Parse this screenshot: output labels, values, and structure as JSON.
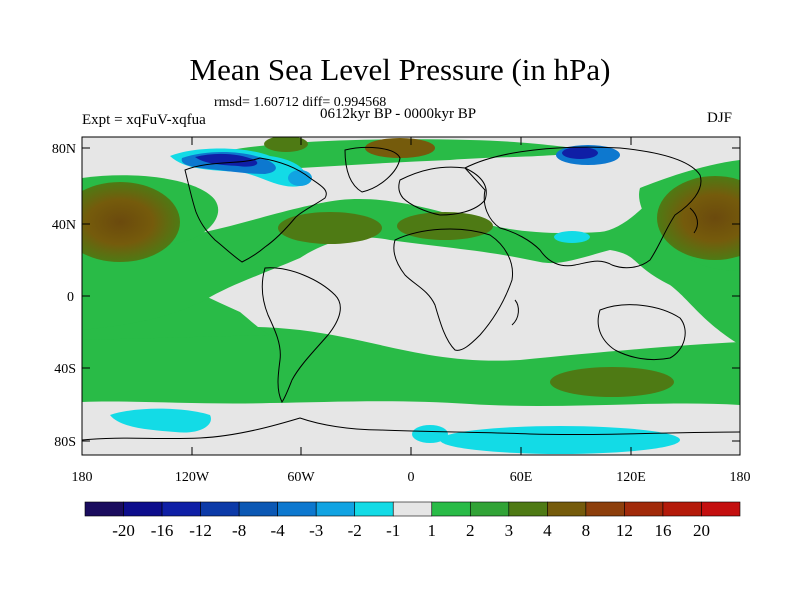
{
  "title": "Mean Sea Level Pressure (in hPa)",
  "stats": "rmsd= 1.60712 diff= 0.994568",
  "period": "0612kyr BP - 0000kyr BP",
  "experiment": "Expt = xqFuV-xqfua",
  "season": "DJF",
  "lat_ticks": [
    "80N",
    "40N",
    "0",
    "40S",
    "80S"
  ],
  "lon_ticks": [
    "180",
    "120W",
    "60W",
    "0",
    "60E",
    "120E",
    "180"
  ],
  "colorbar": {
    "labels": [
      "-20",
      "-16",
      "-12",
      "-8",
      "-4",
      "-3",
      "-2",
      "-1",
      "1",
      "2",
      "3",
      "4",
      "8",
      "12",
      "16",
      "20"
    ],
    "colors": [
      "#1a0c5e",
      "#0d0d8c",
      "#0f1fa6",
      "#0c3aa8",
      "#0c58b4",
      "#0d78cf",
      "#11a3e2",
      "#13dbe6",
      "#e6e6e6",
      "#29bb47",
      "#31a336",
      "#4e7a14",
      "#755b0c",
      "#8d3f0c",
      "#a12a0a",
      "#b41a0a",
      "#c40f0f"
    ]
  }
}
